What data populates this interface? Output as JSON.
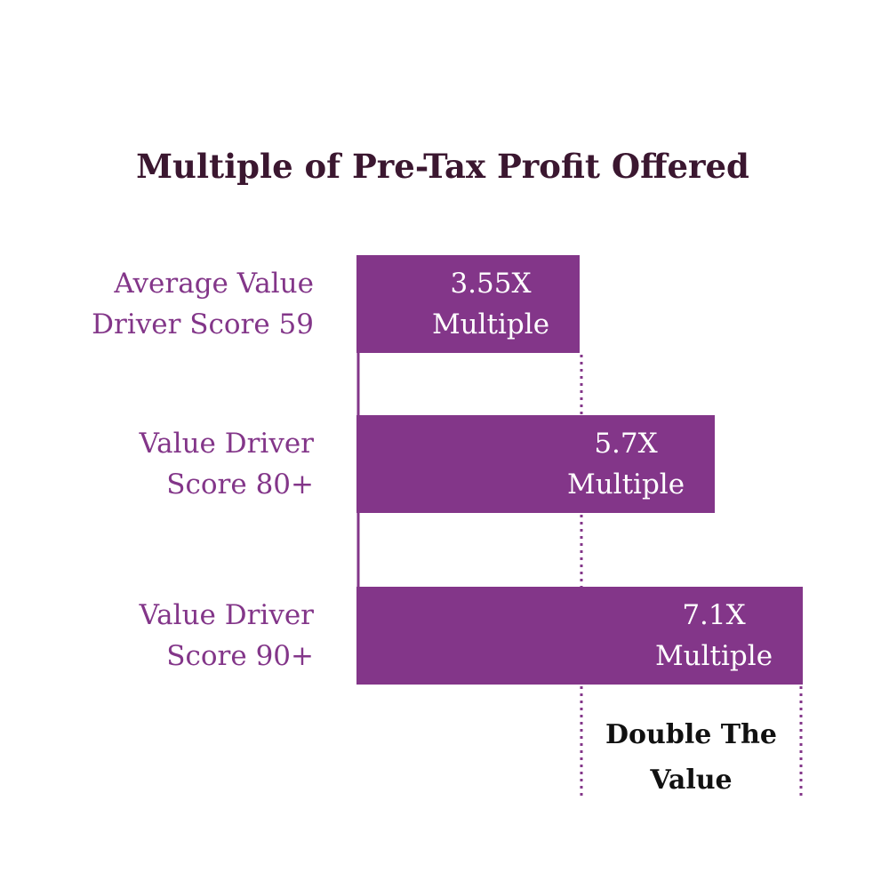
{
  "chart_data": {
    "type": "bar",
    "orientation": "horizontal",
    "title": "Multiple of Pre-Tax Profit Offered",
    "xlabel": "",
    "ylabel": "",
    "xlim": [
      0,
      7.1
    ],
    "grid": false,
    "categories": [
      [
        "Average Value",
        "Driver Score 59"
      ],
      [
        "Value Driver",
        "Score 80+"
      ],
      [
        "Value Driver",
        "Score 90+"
      ]
    ],
    "values": [
      3.55,
      5.7,
      7.1
    ],
    "bar_labels": [
      [
        "3.55X",
        "Multiple"
      ],
      [
        "5.7X",
        "Multiple"
      ],
      [
        "7.1X",
        "Multiple"
      ]
    ],
    "color": "#833689",
    "annotation": {
      "lines": [
        "Double The",
        "Value"
      ],
      "from_value": 3.55,
      "to_value": 7.1
    }
  }
}
